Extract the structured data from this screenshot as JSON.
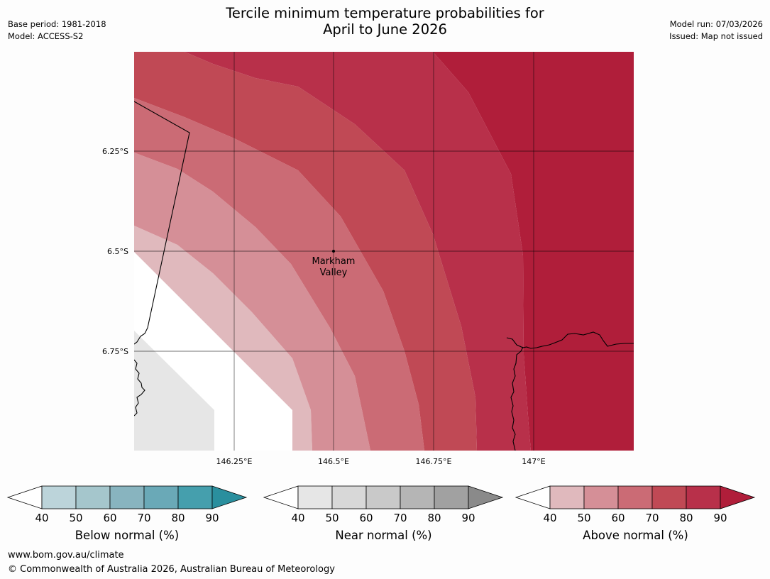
{
  "header": {
    "title_line1": "Tercile minimum temperature probabilities for",
    "title_line2": "April to June 2026",
    "base_period": "Base period: 1981-2018",
    "model": "Model: ACCESS-S2",
    "model_run": "Model run: 07/03/2026",
    "issued": "Issued: Map not issued"
  },
  "map": {
    "lat_labels": [
      "6.25°S",
      "6.5°S",
      "6.75°S"
    ],
    "lon_labels": [
      "146.25°E",
      "146.5°E",
      "146.75°E",
      "147°E"
    ],
    "place_line1": "Markham",
    "place_line2": "Valley",
    "colors": {
      "above_50": "#e0b9bd",
      "above_60": "#d58f97",
      "above_70": "#cb6b75",
      "above_80": "#c04955",
      "above_90": "#b8304a",
      "above_max": "#b01e3a",
      "near": "#e6e6e6"
    }
  },
  "legends": [
    {
      "label": "Below normal (%)",
      "ticks": [
        "40",
        "50",
        "60",
        "70",
        "80",
        "90"
      ],
      "colors": [
        "#bcd4da",
        "#a5c6cc",
        "#88b4bf",
        "#6aa9b7",
        "#459fad"
      ],
      "tip": "#2a8f9e"
    },
    {
      "label": "Near normal (%)",
      "ticks": [
        "40",
        "50",
        "60",
        "70",
        "80",
        "90"
      ],
      "colors": [
        "#e6e6e6",
        "#d8d8d8",
        "#c9c9c9",
        "#b5b5b5",
        "#a1a1a1"
      ],
      "tip": "#8a8a8a"
    },
    {
      "label": "Above normal (%)",
      "ticks": [
        "40",
        "50",
        "60",
        "70",
        "80",
        "90"
      ],
      "colors": [
        "#e0b9bd",
        "#d58f97",
        "#cb6b75",
        "#c04955",
        "#b8304a"
      ],
      "tip": "#b01e3a"
    }
  ],
  "footer": {
    "url": "www.bom.gov.au/climate",
    "copyright": "© Commonwealth of Australia 2026, Australian Bureau of Meteorology"
  }
}
